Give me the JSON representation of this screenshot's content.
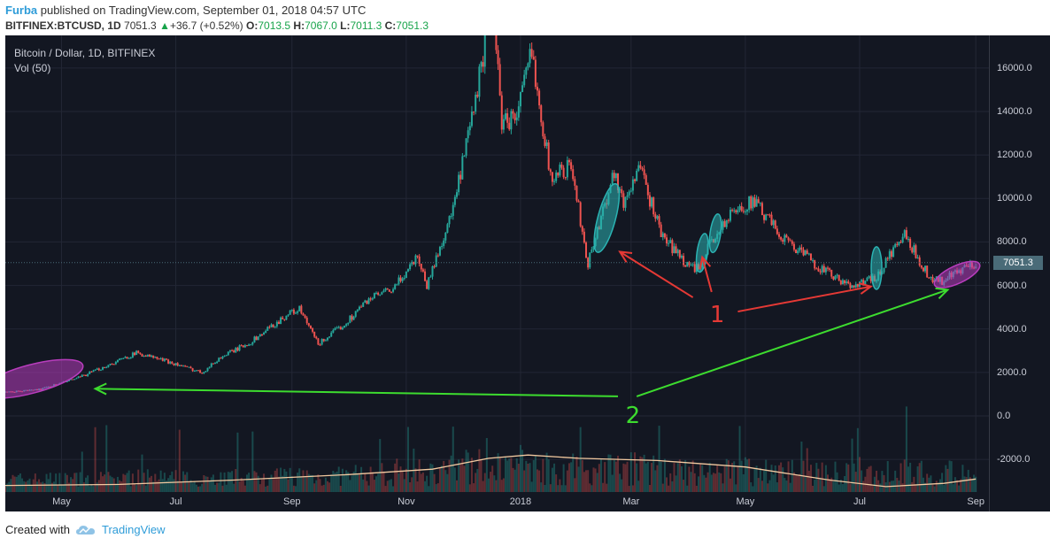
{
  "header": {
    "author": "Furba",
    "published_text": " published on TradingView.com, September 01, 2018 04:57 UTC",
    "symbol": "BITFINEX:BTCUSD, 1D",
    "last": "7051.3",
    "change_arrow": "▲",
    "change": "+36.7 (+0.52%)",
    "o_label": "O:",
    "o_value": "7013.5",
    "h_label": "H:",
    "h_value": "7067.0",
    "l_label": "L:",
    "l_value": "7011.3",
    "c_label": "C:",
    "c_value": "7051.3"
  },
  "legend": {
    "title": "Bitcoin / Dollar, 1D, BITFINEX",
    "vol": "Vol (50)"
  },
  "footer": {
    "created_with": "Created with",
    "brand": "TradingView"
  },
  "price_tag": "7051.3",
  "annotations": {
    "label_1": "1",
    "label_2": "2"
  },
  "colors": {
    "background": "#131722",
    "up": "#26a69a",
    "down": "#ef5350",
    "volume_ma": "#f2c9a0",
    "arrow_red": "#e53935",
    "arrow_green": "#3ddc2f",
    "ellipse_cyan": "#2bb3b3",
    "ellipse_magenta": "#b83dbd"
  },
  "chart_data": {
    "type": "candlestick",
    "title": "Bitcoin / Dollar, 1D, BITFINEX",
    "y_ticks": [
      "16000.0",
      "14000.0",
      "12000.0",
      "10000.0",
      "8000.0",
      "6000.0",
      "4000.0",
      "2000.0",
      "0.0",
      "-2000.0"
    ],
    "y_tick_values": [
      16000,
      14000,
      12000,
      10000,
      8000,
      6000,
      4000,
      2000,
      0,
      -2000
    ],
    "x_ticks": [
      "May",
      "Jul",
      "Sep",
      "Nov",
      "2018",
      "Mar",
      "May",
      "Jul",
      "Sep"
    ],
    "x_tick_dates": [
      "2017-05-01",
      "2017-07-01",
      "2017-09-01",
      "2017-11-01",
      "2018-01-01",
      "2018-03-01",
      "2018-05-01",
      "2018-07-01",
      "2018-09-01"
    ],
    "x_range": [
      "2017-04-01",
      "2018-09-08"
    ],
    "y_range": [
      -3500,
      17500
    ],
    "last_price": 7051.3,
    "price_path": [
      [
        "2017-04-01",
        1080
      ],
      [
        "2017-04-20",
        1230
      ],
      [
        "2017-05-10",
        1750
      ],
      [
        "2017-05-25",
        2300
      ],
      [
        "2017-06-10",
        2900
      ],
      [
        "2017-06-25",
        2550
      ],
      [
        "2017-07-15",
        2000
      ],
      [
        "2017-07-25",
        2700
      ],
      [
        "2017-08-10",
        3400
      ],
      [
        "2017-08-30",
        4700
      ],
      [
        "2017-09-05",
        4900
      ],
      [
        "2017-09-15",
        3300
      ],
      [
        "2017-09-30",
        4300
      ],
      [
        "2017-10-12",
        5400
      ],
      [
        "2017-10-25",
        5800
      ],
      [
        "2017-11-07",
        7400
      ],
      [
        "2017-11-12",
        6000
      ],
      [
        "2017-11-26",
        9500
      ],
      [
        "2017-12-07",
        14000
      ],
      [
        "2017-12-17",
        19200
      ],
      [
        "2017-12-22",
        13500
      ],
      [
        "2017-12-30",
        13800
      ],
      [
        "2018-01-07",
        16800
      ],
      [
        "2018-01-17",
        11000
      ],
      [
        "2018-01-28",
        11500
      ],
      [
        "2018-02-06",
        7000
      ],
      [
        "2018-02-20",
        11300
      ],
      [
        "2018-02-25",
        9700
      ],
      [
        "2018-03-05",
        11500
      ],
      [
        "2018-03-18",
        8200
      ],
      [
        "2018-04-01",
        6900
      ],
      [
        "2018-04-07",
        6700
      ],
      [
        "2018-04-12",
        8000
      ],
      [
        "2018-04-24",
        9300
      ],
      [
        "2018-05-05",
        9900
      ],
      [
        "2018-05-20",
        8300
      ],
      [
        "2018-06-10",
        6800
      ],
      [
        "2018-06-24",
        6000
      ],
      [
        "2018-07-10",
        6300
      ],
      [
        "2018-07-17",
        7400
      ],
      [
        "2018-07-25",
        8300
      ],
      [
        "2018-08-08",
        6300
      ],
      [
        "2018-08-14",
        6200
      ],
      [
        "2018-08-25",
        6700
      ],
      [
        "2018-09-01",
        7051.3
      ]
    ],
    "volume_ma_path": [
      [
        "2017-04-01",
        -3200
      ],
      [
        "2017-06-01",
        -3150
      ],
      [
        "2017-08-01",
        -2950
      ],
      [
        "2017-10-01",
        -2700
      ],
      [
        "2017-11-15",
        -2450
      ],
      [
        "2017-12-15",
        -1950
      ],
      [
        "2018-01-05",
        -1800
      ],
      [
        "2018-02-01",
        -1950
      ],
      [
        "2018-03-15",
        -2050
      ],
      [
        "2018-05-01",
        -2350
      ],
      [
        "2018-06-15",
        -2950
      ],
      [
        "2018-07-15",
        -3250
      ],
      [
        "2018-08-15",
        -3100
      ],
      [
        "2018-09-01",
        -2900
      ]
    ]
  }
}
